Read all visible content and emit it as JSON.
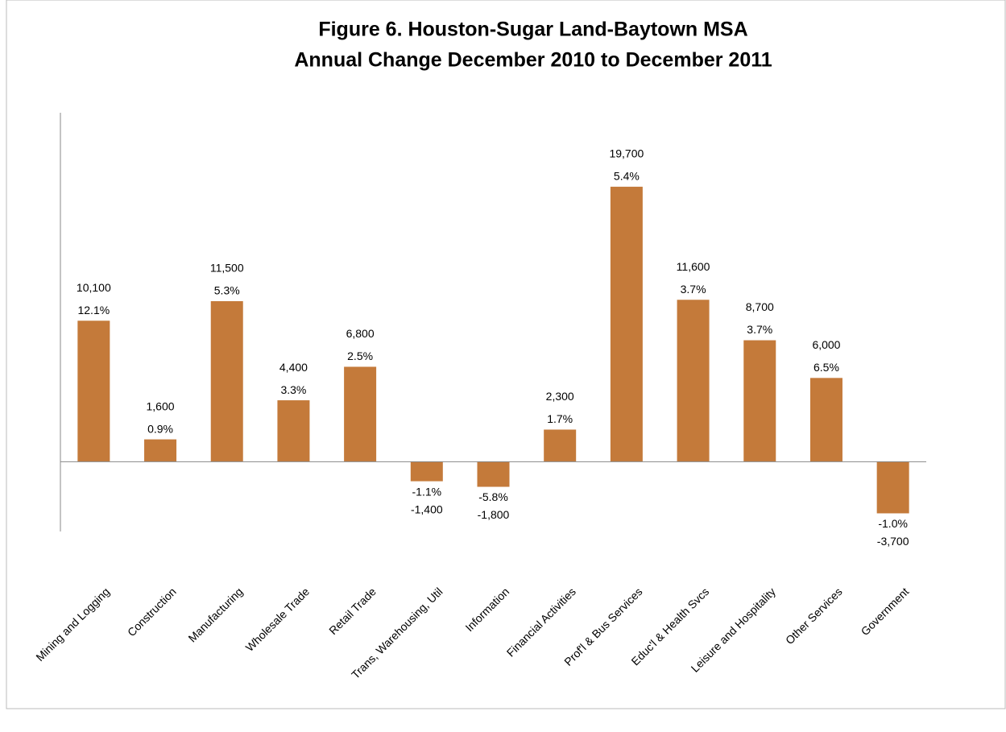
{
  "chart_data": {
    "type": "bar",
    "title": "Figure 6. Houston-Sugar Land-Baytown MSA",
    "subtitle": "Annual Change December 2010 to December 2011",
    "categories": [
      "Mining and Logging",
      "Construction",
      "Manufacturing",
      "Wholesale Trade",
      "Retail Trade",
      "Trans, Warehousing, Util",
      "Information",
      "Financial Activities",
      "Prof'l & Bus Services",
      "Educ'l & Health Svcs",
      "Leisure and Hospitality",
      "Other Services",
      "Government"
    ],
    "values": [
      10100,
      1600,
      11500,
      4400,
      6800,
      -1400,
      -1800,
      2300,
      19700,
      11600,
      8700,
      6000,
      -3700
    ],
    "value_labels": [
      "10,100",
      "1,600",
      "11,500",
      "4,400",
      "6,800",
      "-1,400",
      "-1,800",
      "2,300",
      "19,700",
      "11,600",
      "8,700",
      "6,000",
      "-3,700"
    ],
    "annotations": [
      "12.1%",
      "0.9%",
      "5.3%",
      "3.3%",
      "2.5%",
      "-1.1%",
      "-5.8%",
      "1.7%",
      "5.4%",
      "3.7%",
      "3.7%",
      "6.5%",
      "-1.0%"
    ],
    "color": "#c47a3a",
    "ylim": [
      -5000,
      25000
    ]
  }
}
